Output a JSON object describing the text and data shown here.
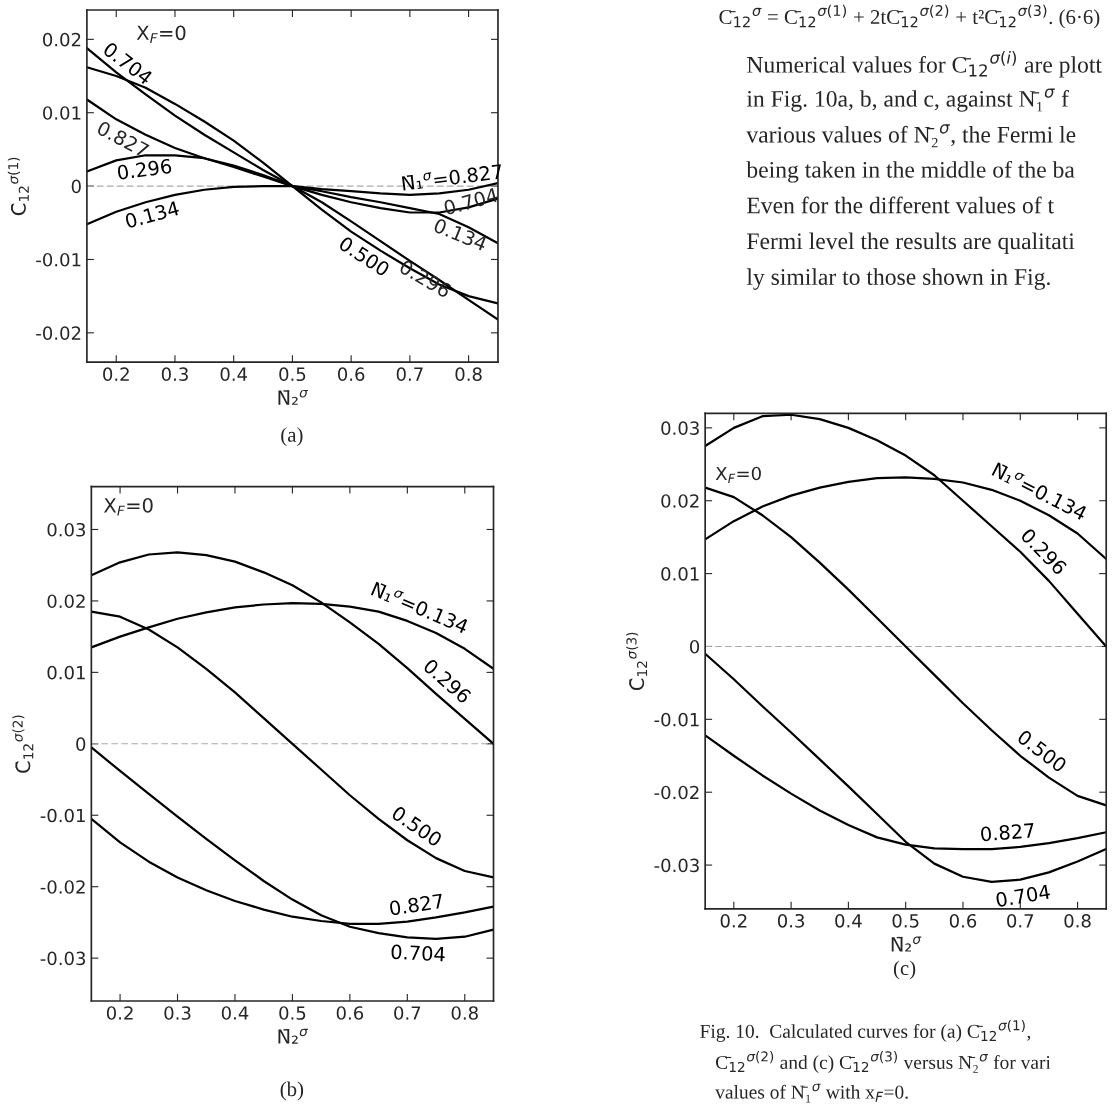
{
  "chart_data": [
    {
      "type": "line",
      "xlabel": "N̄₂$^{σ}$",
      "ylabel": "C̄$_{12}$$^{σ(1)}$",
      "x": [
        0.15,
        0.2,
        0.25,
        0.3,
        0.35,
        0.4,
        0.45,
        0.5,
        0.55,
        0.6,
        0.65,
        0.7,
        0.75,
        0.8,
        0.85
      ],
      "xlim": [
        0.15,
        0.85
      ],
      "xticks": [
        0.2,
        0.3,
        0.4,
        0.5,
        0.6,
        0.7,
        0.8
      ],
      "ylim": [
        -0.024,
        0.024
      ],
      "yticks": [
        -0.02,
        -0.01,
        0,
        0.01,
        0.02
      ],
      "series": [
        {
          "name": "N̄₁$^{σ}$=0.827",
          "color": "#000000",
          "values": [
            0.0118,
            0.0091,
            0.007,
            0.0052,
            0.0038,
            0.0026,
            0.0013,
            0,
            -0.0004,
            -0.0007,
            -0.001,
            -0.0012,
            -0.001,
            -0.0005,
            0.0004
          ]
        },
        {
          "name": "0.704",
          "color": "#000000",
          "values": [
            0.0188,
            0.0155,
            0.0125,
            0.0096,
            0.007,
            0.0046,
            0.0022,
            0,
            -0.0012,
            -0.0022,
            -0.003,
            -0.0036,
            -0.0036,
            -0.0029,
            -0.0017
          ]
        },
        {
          "name": "0.500",
          "color": "#000000",
          "values": [
            0.0162,
            0.015,
            0.0134,
            0.0112,
            0.0088,
            0.0062,
            0.0032,
            0,
            -0.0032,
            -0.0062,
            -0.0088,
            -0.0112,
            -0.0134,
            -0.015,
            -0.016
          ]
        },
        {
          "name": "0.296",
          "color": "#000000",
          "values": [
            0.002,
            0.0035,
            0.0042,
            0.0042,
            0.0038,
            0.0028,
            0.0015,
            0,
            -0.0022,
            -0.0048,
            -0.0075,
            -0.0102,
            -0.0128,
            -0.0155,
            -0.0182
          ]
        },
        {
          "name": "0.134",
          "color": "#000000",
          "values": [
            -0.0052,
            -0.0035,
            -0.0022,
            -0.0012,
            -0.0005,
            -0.0001,
            0,
            0,
            -0.0007,
            -0.0015,
            -0.0022,
            -0.003,
            -0.0038,
            -0.0056,
            -0.0078
          ]
        }
      ],
      "ref_lines": [
        {
          "axis": "y",
          "value": 0,
          "color": "#aaaaaa",
          "line_style": "dashed"
        }
      ],
      "annotations": [
        "X$_{F}$=0",
        "(a)",
        "C̄$_{12}$$^{σ}$ = C̄$_{12}$$^{σ(1)}$ + 2tC̄$_{12}$$^{σ(2)}$ + t²C̄$_{12}$$^{σ(3)}$. (6·6)",
        "Numerical values for C̄$_{12}$$^{σ(i)}$ are plott",
        "in Fig. 10a, b, and c, against N̄₁$^{σ}$ f",
        "various values of N̄₂$^{σ}$, the Fermi le",
        "being taken in the middle of the ba",
        "Even for the different values of t",
        "Fermi level the results are qualitati",
        "ly similar to those shown in Fig.",
        "0.827",
        "0.704",
        "0.134",
        "0.296"
      ]
    },
    {
      "type": "line",
      "xlabel": "N̄₂$^{σ}$",
      "ylabel": "C̄$_{12}$$^{σ(2)}$",
      "x": [
        0.15,
        0.2,
        0.25,
        0.3,
        0.35,
        0.4,
        0.45,
        0.5,
        0.55,
        0.6,
        0.65,
        0.7,
        0.75,
        0.8,
        0.85
      ],
      "xlim": [
        0.15,
        0.85
      ],
      "xticks": [
        0.2,
        0.3,
        0.4,
        0.5,
        0.6,
        0.7,
        0.8
      ],
      "ylim": [
        -0.036,
        0.036
      ],
      "yticks": [
        -0.03,
        -0.02,
        -0.01,
        0,
        0.01,
        0.02,
        0.03
      ],
      "series": [
        {
          "name": "N̄₁$^{σ}$=0.134",
          "color": "#000000",
          "values": [
            0.0135,
            0.015,
            0.0163,
            0.0175,
            0.0184,
            0.0191,
            0.0195,
            0.0197,
            0.0196,
            0.0192,
            0.0185,
            0.0172,
            0.0155,
            0.0133,
            0.0105
          ]
        },
        {
          "name": "0.296",
          "color": "#000000",
          "values": [
            0.0236,
            0.0254,
            0.0265,
            0.0268,
            0.0264,
            0.0255,
            0.024,
            0.0222,
            0.0198,
            0.017,
            0.014,
            0.0106,
            0.007,
            0.0035,
            0
          ]
        },
        {
          "name": "0.500",
          "color": "#000000",
          "values": [
            0.0185,
            0.0178,
            0.016,
            0.0135,
            0.0105,
            0.0072,
            0.0036,
            0,
            -0.0036,
            -0.0072,
            -0.0105,
            -0.0135,
            -0.016,
            -0.0178,
            -0.0187
          ]
        },
        {
          "name": "0.827",
          "color": "#000000",
          "values": [
            -0.0105,
            -0.0138,
            -0.0165,
            -0.0187,
            -0.0205,
            -0.022,
            -0.0232,
            -0.0242,
            -0.0248,
            -0.0252,
            -0.0252,
            -0.0249,
            -0.0243,
            -0.0236,
            -0.0228
          ]
        },
        {
          "name": "0.704",
          "color": "#000000",
          "values": [
            -0.0005,
            -0.0038,
            -0.007,
            -0.0102,
            -0.0133,
            -0.0163,
            -0.0192,
            -0.0218,
            -0.024,
            -0.0256,
            -0.0265,
            -0.0271,
            -0.0273,
            -0.027,
            -0.026
          ]
        }
      ],
      "ref_lines": [
        {
          "axis": "y",
          "value": 0,
          "color": "#aaaaaa",
          "line_style": "dashed"
        }
      ],
      "annotations": [
        "X$_{F}$=0",
        "(b)"
      ]
    },
    {
      "type": "line",
      "xlabel": "N̄₂$^{σ}$",
      "ylabel": "C̄$_{12}$$^{σ(3)}$",
      "x": [
        0.15,
        0.2,
        0.25,
        0.3,
        0.35,
        0.4,
        0.45,
        0.5,
        0.55,
        0.6,
        0.65,
        0.7,
        0.75,
        0.8,
        0.85
      ],
      "xlim": [
        0.15,
        0.85
      ],
      "xticks": [
        0.2,
        0.3,
        0.4,
        0.5,
        0.6,
        0.7,
        0.8
      ],
      "ylim": [
        -0.036,
        0.032
      ],
      "yticks": [
        -0.03,
        -0.02,
        -0.01,
        0,
        0.01,
        0.02,
        0.03
      ],
      "series": [
        {
          "name": "N̄₁$^{σ}$=0.134",
          "color": "#000000",
          "values": [
            0.0147,
            0.0172,
            0.0192,
            0.0207,
            0.0218,
            0.0226,
            0.0231,
            0.0232,
            0.023,
            0.0225,
            0.0215,
            0.02,
            0.018,
            0.0155,
            0.012
          ]
        },
        {
          "name": "0.296",
          "color": "#000000",
          "values": [
            0.0275,
            0.03,
            0.0316,
            0.0318,
            0.0312,
            0.03,
            0.0283,
            0.0262,
            0.0235,
            0.02,
            0.0165,
            0.013,
            0.009,
            0.0045,
            0
          ]
        },
        {
          "name": "0.500",
          "color": "#000000",
          "values": [
            0.0218,
            0.0205,
            0.018,
            0.015,
            0.0115,
            0.0078,
            0.0039,
            0,
            -0.0039,
            -0.0078,
            -0.0115,
            -0.015,
            -0.018,
            -0.0205,
            -0.0218
          ]
        },
        {
          "name": "0.827",
          "color": "#000000",
          "values": [
            -0.0122,
            -0.015,
            -0.0177,
            -0.0202,
            -0.0225,
            -0.0245,
            -0.0262,
            -0.0272,
            -0.0277,
            -0.0278,
            -0.0278,
            -0.0275,
            -0.027,
            -0.0263,
            -0.0255
          ]
        },
        {
          "name": "0.704",
          "color": "#000000",
          "values": [
            -0.001,
            -0.0045,
            -0.0082,
            -0.0118,
            -0.0155,
            -0.0192,
            -0.023,
            -0.0268,
            -0.0298,
            -0.0316,
            -0.0323,
            -0.032,
            -0.031,
            -0.0295,
            -0.0278
          ]
        }
      ],
      "ref_lines": [
        {
          "axis": "y",
          "value": 0,
          "color": "#aaaaaa",
          "line_style": "dashed"
        }
      ],
      "annotations": [
        "X$_{F}$=0",
        "(c)",
        "Fig. 10.  Calculated curves for (a) C̄$_{12}$$^{σ(1)}$,",
        "C̄$_{12}$$^{σ(2)}$ and (c) C̄$_{12}$$^{σ(3)}$ versus N̄₂$^{σ}$ for vari",
        "values of N̄₁$^{σ}$ with x$_{F}$=0."
      ]
    }
  ]
}
